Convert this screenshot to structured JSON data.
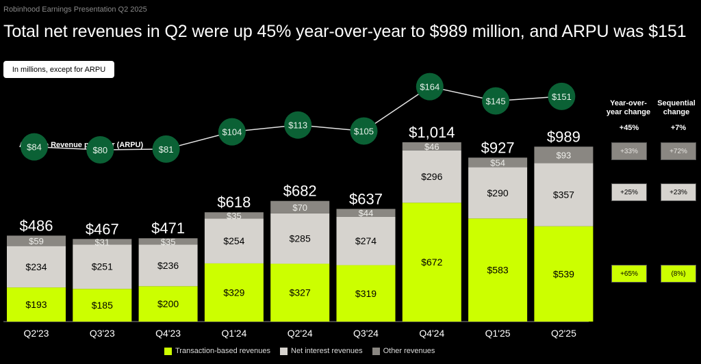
{
  "header": {
    "supertitle": "Robinhood Earnings Presentation Q2 2025",
    "title": "Total net revenues in Q2 were up 45% year-over-year to $989 million, and ARPU was $151",
    "unit_note": "In millions, except for ARPU"
  },
  "colors": {
    "transaction": "#CCFF00",
    "net_interest": "#D6D3CE",
    "other": "#8A8782",
    "arpu_circle": "#0B6135",
    "background": "#000000"
  },
  "changes": {
    "yoy_header": "Year-over- year change",
    "seq_header": "Sequential change",
    "yoy_total": "+45%",
    "seq_total": "+7%",
    "other": {
      "yoy": "+33%",
      "seq": "+72%"
    },
    "net_interest": {
      "yoy": "+25%",
      "seq": "+23%"
    },
    "transaction": {
      "yoy": "+65%",
      "seq": "(8%)"
    }
  },
  "chart_data": {
    "type": "bar",
    "stacked": true,
    "title": "Total net revenues in Q2 were up 45% year-over-year to $989 million, and ARPU was $151",
    "xlabel": "",
    "ylabel": "",
    "categories": [
      "Q2'23",
      "Q3'23",
      "Q4'23",
      "Q1'24",
      "Q2'24",
      "Q3'24",
      "Q4'24",
      "Q1'25",
      "Q2'25"
    ],
    "series": [
      {
        "name": "Transaction-based revenues",
        "key": "transaction",
        "values": [
          193,
          185,
          200,
          329,
          327,
          319,
          672,
          583,
          539
        ],
        "labels": [
          "$193",
          "$185",
          "$200",
          "$329",
          "$327",
          "$319",
          "$672",
          "$583",
          "$539"
        ]
      },
      {
        "name": "Net interest revenues",
        "key": "net_interest",
        "values": [
          234,
          251,
          236,
          254,
          285,
          274,
          296,
          290,
          357
        ],
        "labels": [
          "$234",
          "$251",
          "$236",
          "$254",
          "$285",
          "$274",
          "$296",
          "$290",
          "$357"
        ]
      },
      {
        "name": "Other revenues",
        "key": "other",
        "values": [
          59,
          31,
          35,
          35,
          70,
          44,
          46,
          54,
          93
        ],
        "labels": [
          "$59",
          "$31",
          "$35",
          "$35",
          "$70",
          "$44",
          "$46",
          "$54",
          "$93"
        ]
      }
    ],
    "totals": [
      486,
      467,
      471,
      618,
      682,
      637,
      1014,
      927,
      989
    ],
    "total_labels": [
      "$486",
      "$467",
      "$471",
      "$618",
      "$682",
      "$637",
      "$1,014",
      "$927",
      "$989"
    ],
    "arpu": {
      "name": "Average Revenue per User (ARPU)",
      "values": [
        84,
        80,
        81,
        104,
        113,
        105,
        164,
        145,
        151
      ],
      "labels": [
        "$84",
        "$80",
        "$81",
        "$104",
        "$113",
        "$105",
        "$164",
        "$145",
        "$151"
      ]
    },
    "ylim": [
      0,
      1100
    ],
    "grid": false,
    "legend": "bottom-center"
  },
  "legend": [
    {
      "label": "Transaction-based revenues",
      "key": "transaction"
    },
    {
      "label": "Net interest revenues",
      "key": "net_interest"
    },
    {
      "label": "Other revenues",
      "key": "other"
    }
  ]
}
